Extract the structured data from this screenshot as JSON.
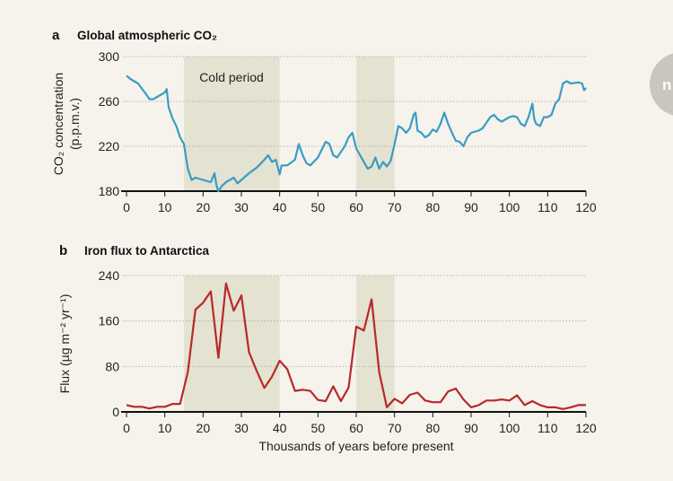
{
  "chart_data": [
    {
      "type": "line",
      "panel": "a",
      "title": "Global atmospheric CO₂",
      "ylabel_line1": "CO₂ concentration",
      "ylabel_line2": "(p.p.m.v.)",
      "xlim": [
        0,
        120
      ],
      "ylim": [
        180,
        300
      ],
      "xticks": [
        0,
        10,
        20,
        30,
        40,
        50,
        60,
        70,
        80,
        90,
        100,
        110,
        120
      ],
      "yticks": [
        180,
        220,
        260,
        300
      ],
      "grid": "horizontal dotted",
      "color": "#3a9cc4",
      "shaded_regions": [
        [
          15,
          40
        ],
        [
          60,
          70
        ]
      ],
      "shade_color": "#e4e2d0",
      "annotation": "Cold period",
      "x": [
        0,
        1,
        3,
        5,
        6,
        7,
        8,
        10,
        10.5,
        11,
        12,
        13,
        14,
        15,
        16,
        17,
        18,
        20,
        22,
        23,
        23.5,
        24,
        25,
        26,
        28,
        29,
        30,
        32,
        34,
        36,
        37,
        38,
        39,
        40,
        40.5,
        42,
        44,
        45,
        46,
        47,
        48,
        50,
        52,
        53,
        54,
        55,
        57,
        58,
        59,
        60,
        61,
        63,
        64,
        65,
        66,
        67,
        68,
        69,
        70,
        71,
        72,
        73,
        74,
        75,
        75.5,
        76,
        77,
        78,
        79,
        80,
        81,
        82,
        83,
        84,
        85,
        86,
        87,
        88,
        89,
        90,
        92,
        93,
        95,
        96,
        97,
        98,
        100,
        101,
        102,
        103,
        104,
        105,
        106,
        106.5,
        107,
        108,
        109,
        110,
        111,
        112,
        113,
        114,
        115,
        116,
        118,
        119,
        119.5,
        120
      ],
      "y": [
        283,
        280,
        276,
        267,
        262,
        262,
        264,
        268,
        271,
        255,
        245,
        238,
        228,
        222,
        200,
        190,
        192,
        190,
        188,
        196,
        185,
        180,
        185,
        188,
        192,
        187,
        190,
        196,
        201,
        208,
        212,
        206,
        208,
        195,
        203,
        203,
        208,
        222,
        212,
        205,
        203,
        210,
        224,
        222,
        212,
        210,
        220,
        228,
        232,
        218,
        212,
        200,
        202,
        210,
        200,
        206,
        202,
        207,
        222,
        238,
        236,
        232,
        236,
        248,
        250,
        234,
        232,
        228,
        230,
        235,
        233,
        240,
        250,
        240,
        232,
        225,
        224,
        220,
        228,
        232,
        234,
        236,
        246,
        248,
        244,
        242,
        246,
        247,
        246,
        240,
        238,
        246,
        258,
        244,
        240,
        238,
        246,
        246,
        248,
        258,
        262,
        276,
        278,
        276,
        277,
        276,
        270,
        272
      ]
    },
    {
      "type": "line",
      "panel": "b",
      "title": "Iron flux to Antarctica",
      "ylabel": "Flux (µg m⁻² yr⁻¹)",
      "xlabel": "Thousands of years before present",
      "xlim": [
        0,
        120
      ],
      "ylim": [
        0,
        240
      ],
      "xticks": [
        0,
        10,
        20,
        30,
        40,
        50,
        60,
        70,
        80,
        90,
        100,
        110,
        120
      ],
      "yticks": [
        0,
        80,
        160,
        240
      ],
      "grid": "horizontal dotted",
      "color": "#b8282a",
      "shaded_regions": [
        [
          15,
          40
        ],
        [
          60,
          70
        ]
      ],
      "shade_color": "#e4e2d0",
      "x": [
        0,
        2,
        4,
        6,
        8,
        10,
        12,
        14,
        16,
        18,
        20,
        22,
        24,
        26,
        28,
        30,
        32,
        34,
        36,
        38,
        40,
        42,
        44,
        46,
        48,
        50,
        52,
        54,
        56,
        58,
        60,
        62,
        64,
        66,
        68,
        70,
        72,
        74,
        76,
        78,
        80,
        82,
        84,
        86,
        88,
        90,
        92,
        94,
        96,
        98,
        100,
        102,
        104,
        106,
        108,
        110,
        112,
        114,
        116,
        118,
        120
      ],
      "y": [
        12,
        9,
        9,
        6,
        9,
        9,
        14,
        14,
        70,
        180,
        192,
        212,
        95,
        226,
        178,
        205,
        105,
        72,
        42,
        62,
        90,
        75,
        37,
        39,
        37,
        21,
        19,
        45,
        19,
        43,
        150,
        143,
        198,
        70,
        8,
        23,
        15,
        30,
        34,
        20,
        17,
        17,
        36,
        41,
        22,
        8,
        12,
        20,
        20,
        22,
        20,
        29,
        12,
        19,
        12,
        8,
        8,
        5,
        8,
        12,
        12
      ]
    }
  ],
  "side_badge": "n"
}
